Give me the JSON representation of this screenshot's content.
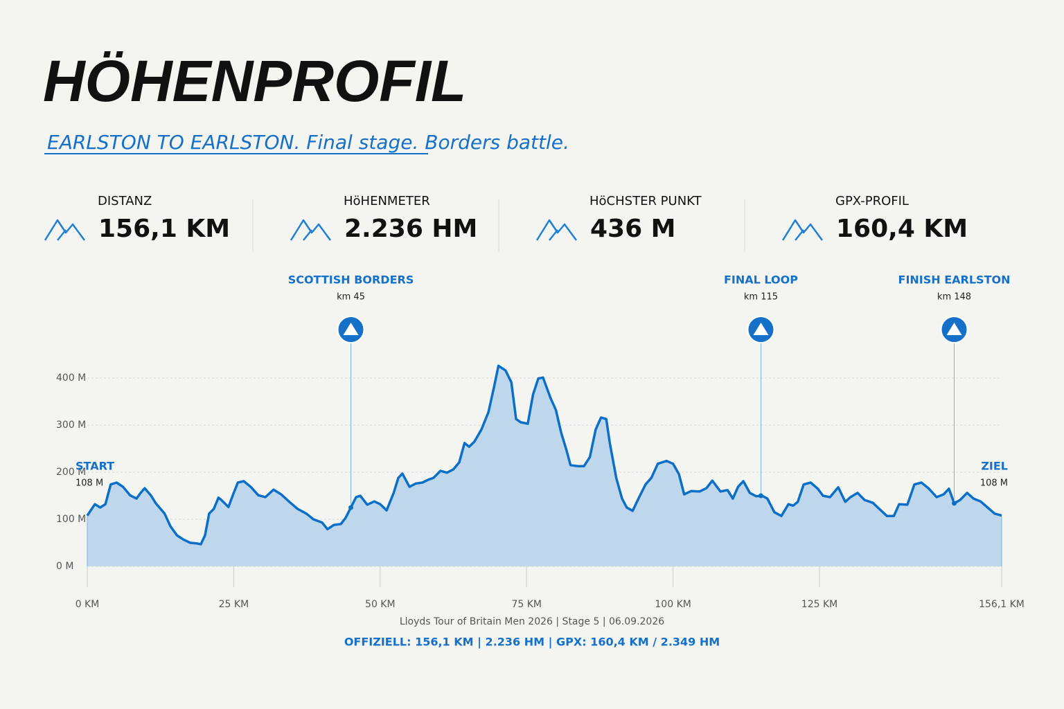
{
  "header": {
    "title": "HÖHENPROFIL",
    "subtitle": "EARLSTON TO EARLSTON. Final stage. Borders battle."
  },
  "stats": [
    {
      "label": "DISTANZ",
      "value": "156,1 KM"
    },
    {
      "label": "HöHENMETER",
      "value": "2.236 HM"
    },
    {
      "label": "HöCHSTER PUNKT",
      "value": "436 M"
    },
    {
      "label": "GPX-PROFIL",
      "value": "160,4 KM"
    }
  ],
  "chart_data": {
    "type": "area",
    "x": [
      0,
      1.3,
      2.2,
      3.1,
      4,
      5,
      6.1,
      7.3,
      8.4,
      9.1,
      9.8,
      10.9,
      11.7,
      13.2,
      14.2,
      15.3,
      16.4,
      17.6,
      18.6,
      19.4,
      20.1,
      20.8,
      21.6,
      22.4,
      22.9,
      24.1,
      24.9,
      25.7,
      26.7,
      27.9,
      29.2,
      30.4,
      31.8,
      33.1,
      34.5,
      35.9,
      37.4,
      38.6,
      40.1,
      41,
      42.1,
      43.3,
      44.1,
      45,
      45.9,
      46.6,
      47.8,
      49,
      50,
      51.1,
      52.3,
      53.1,
      53.8,
      55,
      56.1,
      57.2,
      58.2,
      59.1,
      60.3,
      61.4,
      62.5,
      63.5,
      64.4,
      65.2,
      66.1,
      67.3,
      68.5,
      69.4,
      70.2,
      71.4,
      72.4,
      73.2,
      74,
      75.2,
      76.1,
      77,
      77.8,
      79.1,
      80,
      80.9,
      81.8,
      82.5,
      83.7,
      84.8,
      85.8,
      86.8,
      87.7,
      88.6,
      89.2,
      90.3,
      91.3,
      92.1,
      93.1,
      94.1,
      95.3,
      96.3,
      97.4,
      98.9,
      100,
      101,
      101.9,
      103.1,
      104.5,
      105.7,
      106.7,
      108.1,
      109.3,
      110.2,
      111.1,
      112,
      113.1,
      114.2,
      115.2,
      116.1,
      117.3,
      118.5,
      119.7,
      120.5,
      121.3,
      122.3,
      123.5,
      124.7,
      125.6,
      126.8,
      128.2,
      129.4,
      130.3,
      131.5,
      132.7,
      134.1,
      135.3,
      136.5,
      137.7,
      138.6,
      140,
      141.2,
      142.4,
      143.6,
      145,
      146.2,
      147.1,
      148,
      149,
      150.2,
      151.3,
      152.5,
      153.7,
      154.9,
      156.1
    ],
    "series": [
      {
        "color": "#0b6fc7",
        "fill": "#bfd7ec",
        "values": [
          108,
          132,
          125,
          132,
          174,
          178,
          169,
          151,
          144,
          156,
          166,
          150,
          134,
          112,
          85,
          66,
          57,
          50,
          49,
          47,
          66,
          112,
          122,
          146,
          141,
          126,
          153,
          178,
          181,
          169,
          151,
          147,
          163,
          153,
          137,
          122,
          112,
          100,
          93,
          79,
          88,
          90,
          103,
          125,
          147,
          150,
          131,
          138,
          132,
          119,
          156,
          188,
          197,
          169,
          176,
          178,
          184,
          188,
          203,
          199,
          206,
          221,
          262,
          254,
          265,
          291,
          328,
          379,
          426,
          416,
          391,
          313,
          306,
          303,
          365,
          399,
          401,
          357,
          332,
          284,
          247,
          215,
          213,
          213,
          232,
          291,
          316,
          313,
          262,
          188,
          144,
          125,
          118,
          144,
          174,
          188,
          218,
          224,
          218,
          196,
          153,
          160,
          159,
          166,
          182,
          159,
          162,
          144,
          169,
          181,
          156,
          149,
          150,
          144,
          115,
          107,
          132,
          129,
          137,
          174,
          178,
          165,
          150,
          147,
          168,
          137,
          147,
          156,
          141,
          135,
          121,
          107,
          107,
          132,
          131,
          174,
          178,
          166,
          147,
          153,
          165,
          134,
          141,
          156,
          144,
          138,
          125,
          112,
          108
        ]
      }
    ],
    "xlim": [
      0,
      156.1
    ],
    "ylim": [
      0,
      450
    ],
    "xticks": [
      {
        "value": 0,
        "label": "0 KM"
      },
      {
        "value": 25,
        "label": "25 KM"
      },
      {
        "value": 50,
        "label": "50 KM"
      },
      {
        "value": 75,
        "label": "75 KM"
      },
      {
        "value": 100,
        "label": "100 KM"
      },
      {
        "value": 125,
        "label": "125 KM"
      },
      {
        "value": 156.1,
        "label": "156,1 KM"
      }
    ],
    "yticks": [
      {
        "value": 0,
        "label": "0 M"
      },
      {
        "value": 100,
        "label": "100 M"
      },
      {
        "value": 200,
        "label": "200 M"
      },
      {
        "value": 300,
        "label": "300 M"
      },
      {
        "value": 400,
        "label": "400 M"
      }
    ],
    "grid": true,
    "annotations": [
      {
        "label": "SCOTTISH BORDERS",
        "sublabel": "km 45",
        "x": 45
      },
      {
        "label": "FINAL LOOP",
        "sublabel": "km 115",
        "x": 115
      },
      {
        "label": "FINISH EARLSTON",
        "sublabel": "km 148",
        "x": 148
      }
    ],
    "endpoints": [
      {
        "label": "START",
        "sublabel": "108 M"
      },
      {
        "label": "ZIEL",
        "sublabel": "108 M"
      }
    ]
  },
  "footer": {
    "caption": "Lloyds Tour of Britain Men 2026 | Stage 5 | 06.09.2026",
    "summary": "OFFIZIELL: 156,1 KM | 2.236 HM | GPX: 160,4 KM / 2.349 HM"
  }
}
